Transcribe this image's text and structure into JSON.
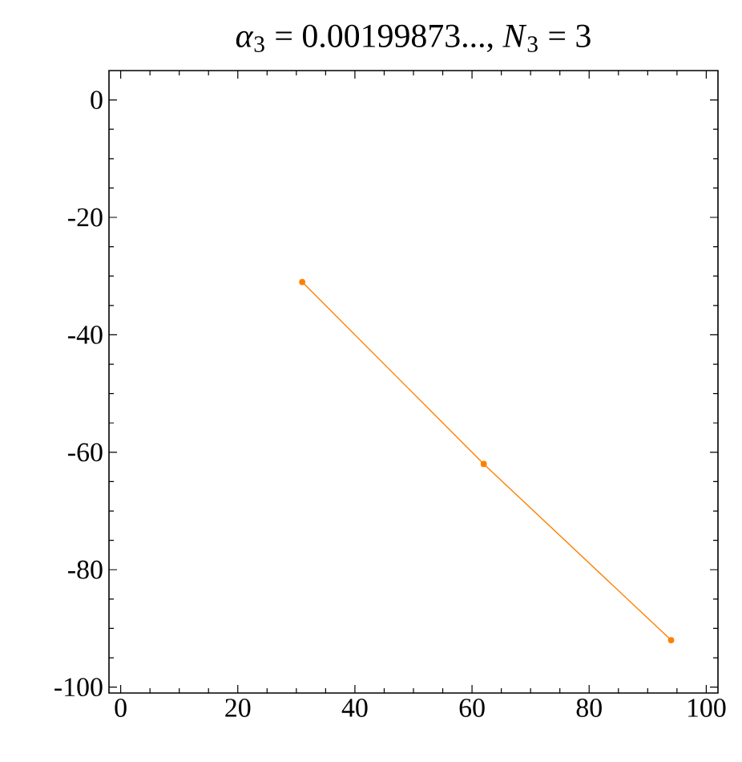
{
  "chart_data": {
    "type": "line",
    "title": "*α*$_{3}$  = 0.00199873...,  *N*$_{3}$ = 3",
    "x": [
      31,
      62,
      94
    ],
    "series": [
      {
        "color": "#ff8000",
        "values": [
          -31,
          -62,
          -92
        ]
      }
    ],
    "xlim": [
      -2,
      102
    ],
    "ylim": [
      -101,
      5
    ],
    "xticks": [
      0,
      20,
      40,
      60,
      80,
      100
    ],
    "yticks": [
      0,
      -20,
      -40,
      -60,
      -80,
      -100
    ],
    "marker": "circle",
    "line_style": "solid"
  }
}
